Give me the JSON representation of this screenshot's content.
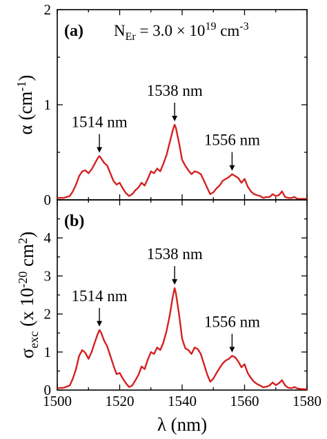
{
  "colors": {
    "series": "#d42020",
    "axes": "#000000"
  },
  "figure": {
    "x_ticks": [
      "1500",
      "1520",
      "1540",
      "1560",
      "1580"
    ],
    "x_label": "λ (nm)"
  },
  "chart_data": [
    {
      "type": "line",
      "panel": "(a)",
      "annotation": {
        "main": "N",
        "sub": "Er",
        "mid": " = 3.0 × 10",
        "sup": "19",
        "tail": " cm",
        "tail_sup": "-3"
      },
      "ylabel": {
        "main": "α (cm",
        "sup": "-1",
        "tail": ")"
      },
      "xlim": [
        1500,
        1580
      ],
      "ylim": [
        0,
        2
      ],
      "y_ticks": [
        "0",
        "1",
        "2"
      ],
      "peaks": [
        {
          "label": "1514 nm",
          "x": 1513.5,
          "y": 0.46
        },
        {
          "label": "1538 nm",
          "x": 1537.6,
          "y": 0.79
        },
        {
          "label": "1556 nm",
          "x": 1556.0,
          "y": 0.27
        }
      ],
      "x": [
        1500,
        1502,
        1504,
        1505,
        1506,
        1507,
        1508,
        1509,
        1510,
        1511,
        1512,
        1513,
        1513.5,
        1514,
        1515,
        1516,
        1517,
        1518,
        1519,
        1520,
        1521,
        1522,
        1523,
        1524,
        1525,
        1526,
        1527,
        1528,
        1529,
        1530,
        1531,
        1532,
        1533,
        1534,
        1535,
        1536,
        1537,
        1537.6,
        1538,
        1539,
        1540,
        1541,
        1542,
        1543,
        1544,
        1545,
        1546,
        1547,
        1548,
        1549,
        1550,
        1551,
        1552,
        1553,
        1554,
        1555,
        1556,
        1557,
        1558,
        1559,
        1560,
        1561,
        1562,
        1563,
        1564,
        1565,
        1566,
        1567,
        1568,
        1569,
        1570,
        1571,
        1572,
        1573,
        1574,
        1575,
        1576,
        1577,
        1578,
        1580
      ],
      "y": [
        0.02,
        0.02,
        0.04,
        0.09,
        0.16,
        0.25,
        0.3,
        0.31,
        0.28,
        0.32,
        0.38,
        0.44,
        0.46,
        0.44,
        0.39,
        0.36,
        0.28,
        0.2,
        0.16,
        0.18,
        0.12,
        0.07,
        0.04,
        0.06,
        0.1,
        0.13,
        0.18,
        0.15,
        0.22,
        0.3,
        0.28,
        0.33,
        0.3,
        0.38,
        0.47,
        0.6,
        0.73,
        0.79,
        0.76,
        0.6,
        0.42,
        0.36,
        0.31,
        0.27,
        0.3,
        0.29,
        0.27,
        0.2,
        0.13,
        0.06,
        0.08,
        0.12,
        0.15,
        0.2,
        0.22,
        0.24,
        0.27,
        0.25,
        0.23,
        0.18,
        0.22,
        0.14,
        0.09,
        0.06,
        0.05,
        0.04,
        0.02,
        0.03,
        0.03,
        0.06,
        0.04,
        0.05,
        0.09,
        0.03,
        0.02,
        0.02,
        0.03,
        0.01,
        0.01,
        0.01
      ]
    },
    {
      "type": "line",
      "panel": "(b)",
      "ylabel": {
        "main": "σ",
        "sub": "exc",
        "mid": " (x 10",
        "sup": "-20",
        "mid2": " cm",
        "sup2": "2",
        "tail": ")"
      },
      "xlim": [
        1500,
        1580
      ],
      "ylim": [
        0,
        5
      ],
      "y_ticks": [
        "0",
        "1",
        "2",
        "3",
        "4"
      ],
      "peaks": [
        {
          "label": "1514 nm",
          "x": 1513.5,
          "y": 1.58
        },
        {
          "label": "1538 nm",
          "x": 1537.6,
          "y": 2.68
        },
        {
          "label": "1556 nm",
          "x": 1556.0,
          "y": 0.9
        }
      ],
      "x": [
        1500,
        1502,
        1504,
        1505,
        1506,
        1507,
        1508,
        1509,
        1510,
        1511,
        1512,
        1513,
        1513.5,
        1514,
        1515,
        1516,
        1517,
        1518,
        1519,
        1520,
        1521,
        1522,
        1523,
        1524,
        1525,
        1526,
        1527,
        1528,
        1529,
        1530,
        1531,
        1532,
        1533,
        1534,
        1535,
        1536,
        1537,
        1537.6,
        1538,
        1539,
        1540,
        1541,
        1542,
        1543,
        1544,
        1545,
        1546,
        1547,
        1548,
        1549,
        1550,
        1551,
        1552,
        1553,
        1554,
        1555,
        1556,
        1557,
        1558,
        1559,
        1560,
        1561,
        1562,
        1563,
        1564,
        1565,
        1566,
        1567,
        1568,
        1569,
        1570,
        1571,
        1572,
        1573,
        1574,
        1575,
        1576,
        1577,
        1578,
        1580
      ],
      "y": [
        0.05,
        0.06,
        0.12,
        0.3,
        0.55,
        0.9,
        1.05,
        0.98,
        0.82,
        1.0,
        1.25,
        1.48,
        1.58,
        1.52,
        1.3,
        1.15,
        0.9,
        0.65,
        0.42,
        0.45,
        0.3,
        0.18,
        0.08,
        0.12,
        0.25,
        0.4,
        0.62,
        0.55,
        0.8,
        1.0,
        0.95,
        1.12,
        1.05,
        1.25,
        1.55,
        1.95,
        2.45,
        2.68,
        2.55,
        2.0,
        1.35,
        1.1,
        1.05,
        0.95,
        1.12,
        1.08,
        0.95,
        0.68,
        0.42,
        0.22,
        0.3,
        0.45,
        0.58,
        0.7,
        0.78,
        0.82,
        0.9,
        0.86,
        0.75,
        0.6,
        0.68,
        0.45,
        0.32,
        0.22,
        0.16,
        0.12,
        0.07,
        0.09,
        0.12,
        0.2,
        0.13,
        0.18,
        0.26,
        0.12,
        0.06,
        0.05,
        0.08,
        0.04,
        0.03,
        0.02
      ]
    }
  ]
}
